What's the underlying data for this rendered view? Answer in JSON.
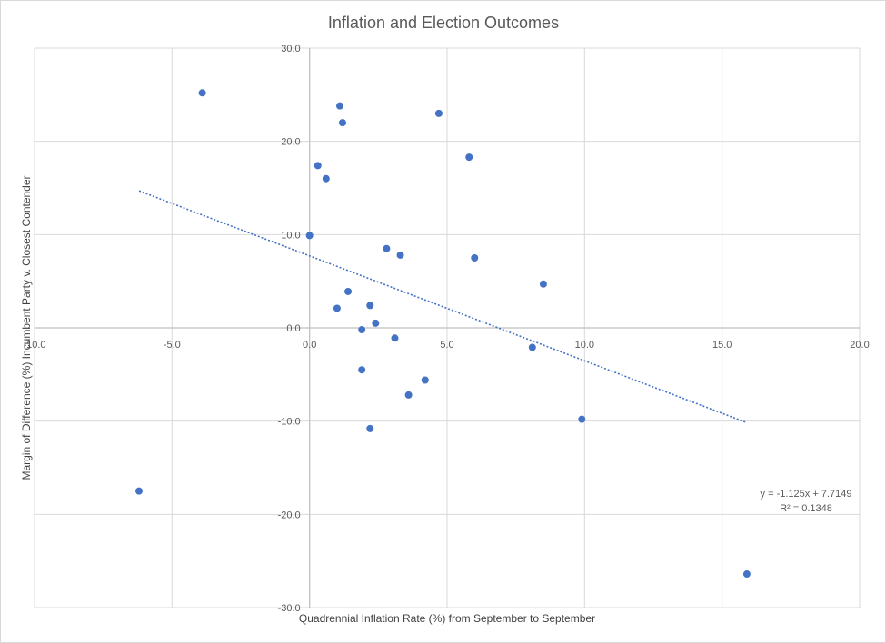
{
  "chart_data": {
    "type": "scatter",
    "title": "Inflation and Election Outcomes",
    "xlabel": "Quadrennial Inflation Rate (%) from September to September",
    "ylabel": "Margin of Difference (%) Incumbent Party v. Closest Contender",
    "xlim": [
      -10,
      20
    ],
    "ylim": [
      -30,
      30
    ],
    "x_ticks": [
      -10,
      -5,
      0,
      5,
      10,
      15,
      20
    ],
    "y_ticks": [
      -30,
      -20,
      -10,
      0,
      10,
      20,
      30
    ],
    "x_tick_labels": [
      "-10.0",
      "-5.0",
      "0.0",
      "5.0",
      "10.0",
      "15.0",
      "20.0"
    ],
    "y_tick_labels": [
      "-30.0",
      "-20.0",
      "-10.0",
      "0.0",
      "10.0",
      "20.0",
      "30.0"
    ],
    "grid": true,
    "marker_color": "#4472c4",
    "trendline_color": "#4472c4",
    "points": [
      {
        "x": -3.9,
        "y": 25.2
      },
      {
        "x": -6.2,
        "y": -17.5
      },
      {
        "x": 1.1,
        "y": 23.8
      },
      {
        "x": 1.2,
        "y": 22.0
      },
      {
        "x": 4.7,
        "y": 23.0
      },
      {
        "x": 5.8,
        "y": 18.3
      },
      {
        "x": 0.3,
        "y": 17.4
      },
      {
        "x": 0.6,
        "y": 16.0
      },
      {
        "x": 0.0,
        "y": 9.9
      },
      {
        "x": 2.8,
        "y": 8.5
      },
      {
        "x": 3.3,
        "y": 7.8
      },
      {
        "x": 6.0,
        "y": 7.5
      },
      {
        "x": 8.5,
        "y": 4.7
      },
      {
        "x": 1.4,
        "y": 3.9
      },
      {
        "x": 1.0,
        "y": 2.1
      },
      {
        "x": 2.2,
        "y": 2.4
      },
      {
        "x": 2.4,
        "y": 0.5
      },
      {
        "x": 1.9,
        "y": -0.2
      },
      {
        "x": 3.1,
        "y": -1.1
      },
      {
        "x": 8.1,
        "y": -2.1
      },
      {
        "x": 1.9,
        "y": -4.5
      },
      {
        "x": 4.2,
        "y": -5.6
      },
      {
        "x": 3.6,
        "y": -7.2
      },
      {
        "x": 9.9,
        "y": -9.8
      },
      {
        "x": 2.2,
        "y": -10.8
      },
      {
        "x": 15.9,
        "y": -26.4
      }
    ],
    "trendline": {
      "type": "linear",
      "x_range": [
        -6.2,
        15.9
      ],
      "slope": -1.125,
      "intercept": 7.7149,
      "equation": "y = -1.125x + 7.7149",
      "r_squared": "R² = 0.1348"
    }
  }
}
